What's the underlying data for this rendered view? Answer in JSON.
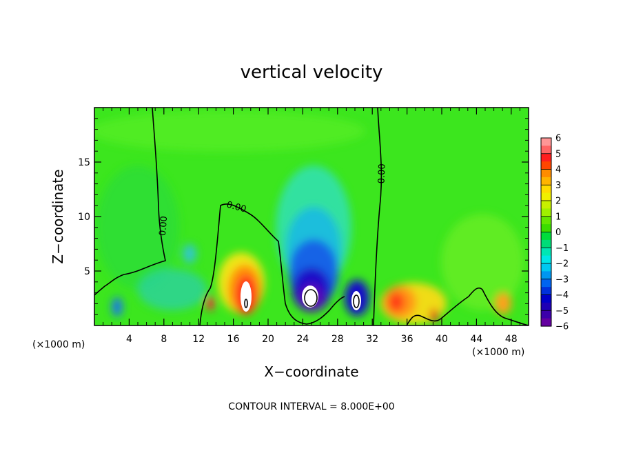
{
  "chart_data": {
    "type": "heatmap",
    "title": "vertical velocity",
    "xlabel": "X−coordinate",
    "ylabel": "Z−coordinate",
    "xunit_left": "(×1000 m)",
    "xunit_right": "(×1000 m)",
    "xlim": [
      0,
      50
    ],
    "ylim": [
      0,
      20
    ],
    "xticks": [
      4,
      8,
      12,
      16,
      20,
      24,
      28,
      32,
      36,
      40,
      44,
      48
    ],
    "yticks": [
      5,
      10,
      15
    ],
    "contour_interval_text": "CONTOUR INTERVAL = 8.000E+00",
    "contour_label": "0.00",
    "colorbar": {
      "min": -6,
      "max": 6,
      "ticks": [
        6,
        5,
        4,
        3,
        2,
        1,
        0,
        -1,
        -2,
        -3,
        -4,
        -5,
        -6
      ],
      "tick_labels": [
        "6",
        "5",
        "4",
        "3",
        "2",
        "1",
        "0",
        "−1",
        "−2",
        "−3",
        "−4",
        "−5",
        "−6"
      ]
    },
    "features": [
      {
        "name": "updraft-core-left",
        "x": 17.5,
        "z": 2.2,
        "value": 6
      },
      {
        "name": "downdraft-core-center",
        "x": 25,
        "z": 2.6,
        "value": -6
      },
      {
        "name": "downdraft-core-right",
        "x": 30.5,
        "z": 2.3,
        "value": -6
      },
      {
        "name": "updraft-right",
        "x": 34.5,
        "z": 2.5,
        "value": 3
      }
    ]
  }
}
